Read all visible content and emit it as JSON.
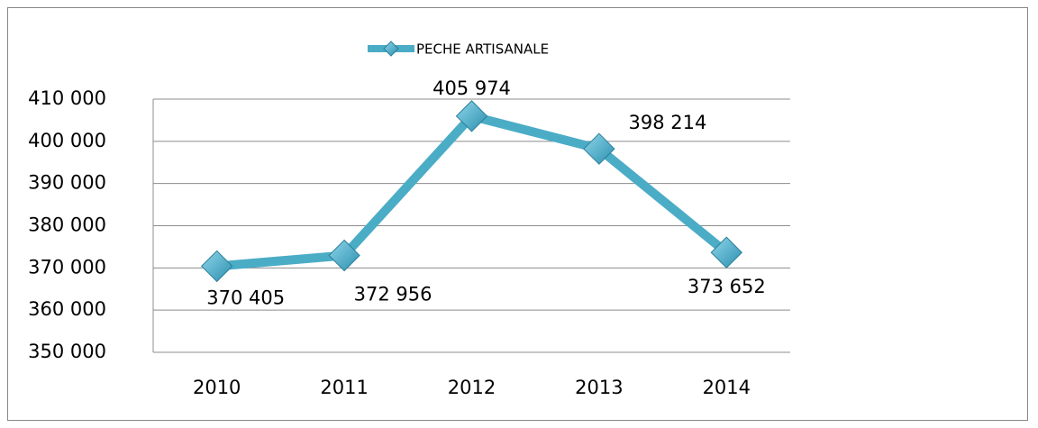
{
  "chart_data": {
    "type": "line",
    "categories": [
      "2010",
      "2011",
      "2012",
      "2013",
      "2014"
    ],
    "series": [
      {
        "name": "PECHE ARTISANALE",
        "color": "#4bacc6",
        "values": [
          370405,
          372956,
          405974,
          398214,
          373652
        ],
        "value_labels": [
          "370 405",
          "372 956",
          "405 974",
          "398 214",
          "373 652"
        ]
      }
    ],
    "ylim": [
      350000,
      410000
    ],
    "yticks": [
      {
        "value": 350000,
        "label": "350 000"
      },
      {
        "value": 360000,
        "label": "360 000"
      },
      {
        "value": 370000,
        "label": "370 000"
      },
      {
        "value": 380000,
        "label": "380 000"
      },
      {
        "value": 390000,
        "label": "390 000"
      },
      {
        "value": 400000,
        "label": "400 000"
      },
      {
        "value": 410000,
        "label": "410 000"
      }
    ],
    "grid": true,
    "legend": "top"
  }
}
